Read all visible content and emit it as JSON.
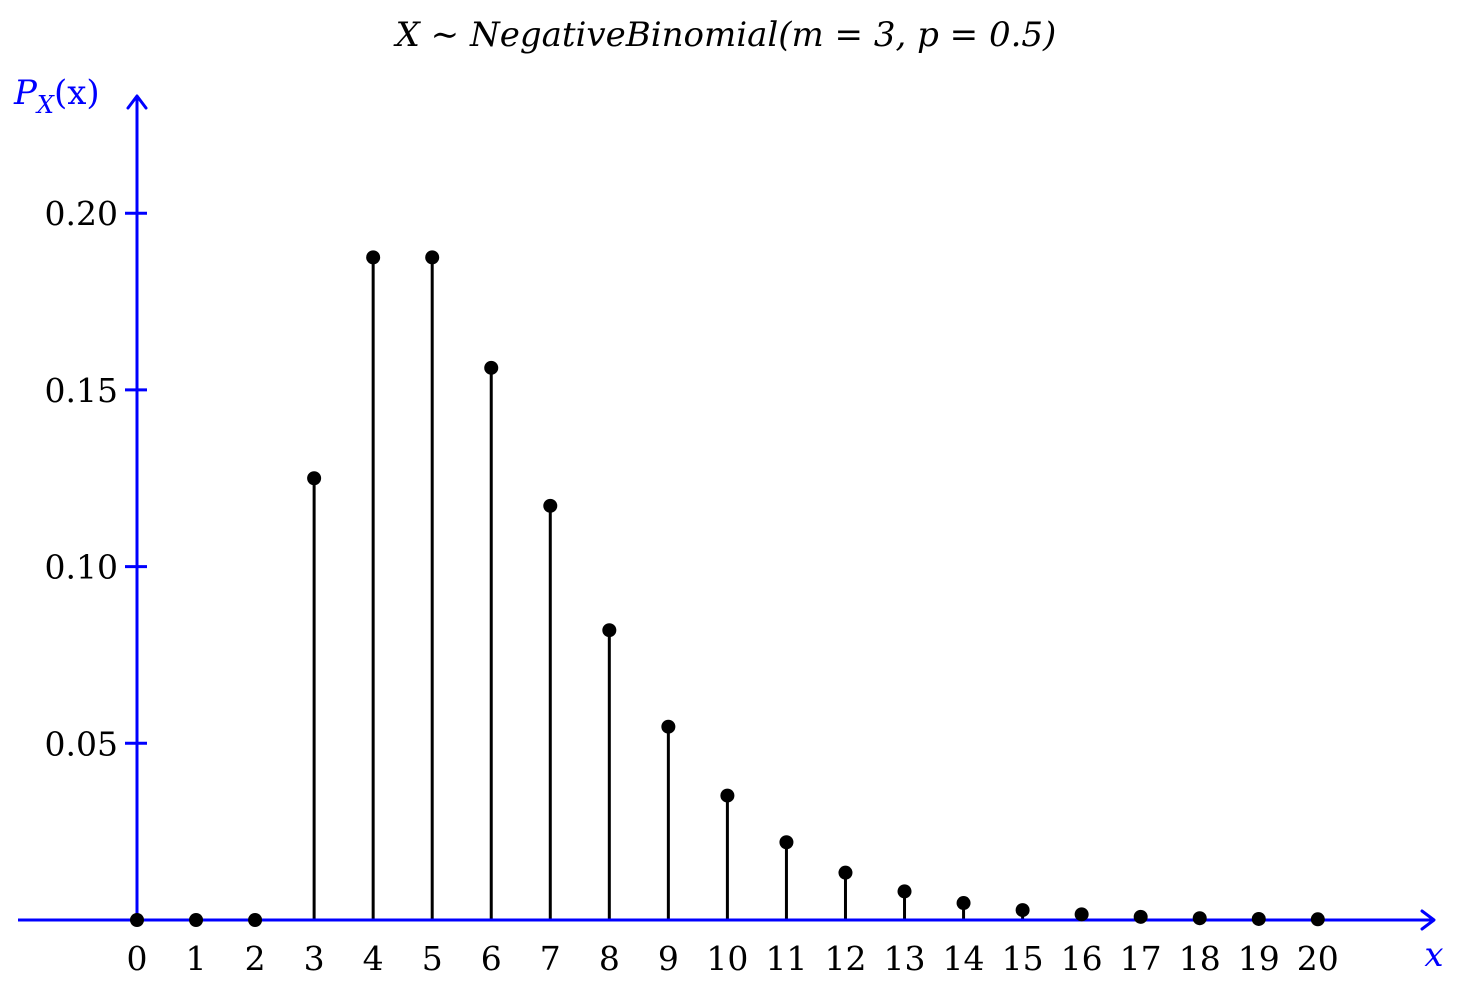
{
  "chart_data": {
    "type": "stem",
    "title": "X ∼ NegativeBinomial(m = 3, p = 0.5)",
    "xlabel": "x",
    "ylabel": "P_X(x)",
    "ylabel_main": "P",
    "ylabel_sub": "X",
    "ylabel_arg": "(x)",
    "x": [
      0,
      1,
      2,
      3,
      4,
      5,
      6,
      7,
      8,
      9,
      10,
      11,
      12,
      13,
      14,
      15,
      16,
      17,
      18,
      19,
      20
    ],
    "x_tick_labels": [
      "0",
      "1",
      "2",
      "3",
      "4",
      "5",
      "6",
      "7",
      "8",
      "9",
      "10",
      "11",
      "12",
      "13",
      "14",
      "15",
      "16",
      "17",
      "18",
      "19",
      "20"
    ],
    "values": [
      0,
      0,
      0,
      0.125,
      0.1875,
      0.1875,
      0.15625,
      0.1172,
      0.082,
      0.0547,
      0.0352,
      0.022,
      0.0134,
      0.0081,
      0.0048,
      0.0028,
      0.0016,
      0.0009,
      0.0005,
      0.0003,
      0.0002
    ],
    "y_ticks": [
      0.05,
      0.1,
      0.15,
      0.2
    ],
    "y_tick_labels": [
      "0.05",
      "0.10",
      "0.15",
      "0.20"
    ],
    "xlim": [
      -2,
      21
    ],
    "ylim": [
      0,
      0.23
    ],
    "grid": false,
    "axis_color": "#0000ff",
    "mark_color": "#000000"
  }
}
